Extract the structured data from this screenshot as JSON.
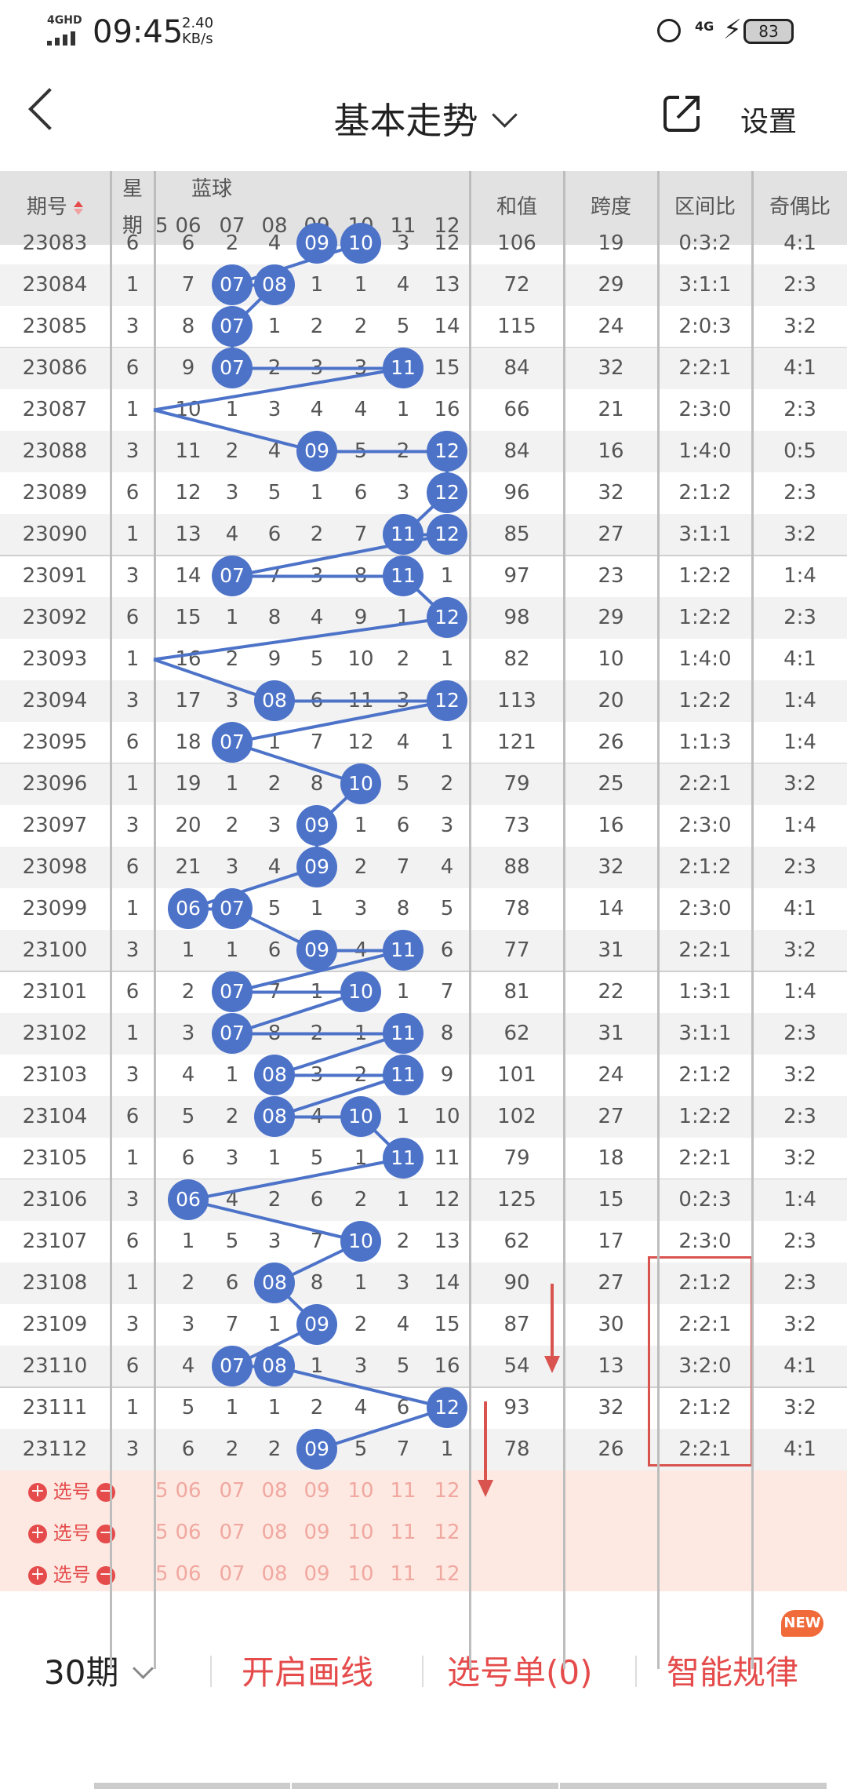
{
  "status": {
    "network": "4GHD",
    "time": "09:45",
    "speed": "2.40",
    "speed_unit": "KB/s",
    "net2": "4G",
    "battery": "83"
  },
  "header": {
    "title": "基本走势",
    "settings": "设置"
  },
  "columns": {
    "issue": "期号",
    "week_top": "星",
    "week_bottom": "期",
    "blue": "蓝球",
    "blue_nums": [
      "06",
      "07",
      "08",
      "09",
      "10",
      "11",
      "12"
    ],
    "blue_partial": "5",
    "sum": "和值",
    "span": "跨度",
    "ratio": "区间比",
    "parity": "奇偶比"
  },
  "rows": [
    {
      "issue": "23083",
      "week": "6",
      "cells": [
        "6",
        "2",
        "4",
        "09",
        "10",
        "3",
        "12"
      ],
      "ball": [
        3,
        4
      ],
      "sum": "106",
      "span": "19",
      "ratio": "0:3:2",
      "parity": "4:1"
    },
    {
      "issue": "23084",
      "week": "1",
      "cells": [
        "7",
        "07",
        "08",
        "1",
        "1",
        "4",
        "13"
      ],
      "ball": [
        1,
        2
      ],
      "sum": "72",
      "span": "29",
      "ratio": "3:1:1",
      "parity": "2:3"
    },
    {
      "issue": "23085",
      "week": "3",
      "cells": [
        "8",
        "07",
        "1",
        "2",
        "2",
        "5",
        "14"
      ],
      "ball": [
        1
      ],
      "sum": "115",
      "span": "24",
      "ratio": "2:0:3",
      "parity": "3:2"
    },
    {
      "issue": "23086",
      "week": "6",
      "cells": [
        "9",
        "07",
        "2",
        "3",
        "3",
        "11",
        "15"
      ],
      "ball": [
        1,
        5
      ],
      "sum": "84",
      "span": "32",
      "ratio": "2:2:1",
      "parity": "4:1"
    },
    {
      "issue": "23087",
      "week": "1",
      "cells": [
        "10",
        "1",
        "3",
        "4",
        "4",
        "1",
        "16"
      ],
      "ball": [],
      "sum": "66",
      "span": "21",
      "ratio": "2:3:0",
      "parity": "2:3"
    },
    {
      "issue": "23088",
      "week": "3",
      "cells": [
        "11",
        "2",
        "4",
        "09",
        "5",
        "2",
        "12"
      ],
      "ball": [
        3,
        6
      ],
      "sum": "84",
      "span": "16",
      "ratio": "1:4:0",
      "parity": "0:5"
    },
    {
      "issue": "23089",
      "week": "6",
      "cells": [
        "12",
        "3",
        "5",
        "1",
        "6",
        "3",
        "12"
      ],
      "ball": [
        6
      ],
      "sum": "96",
      "span": "32",
      "ratio": "2:1:2",
      "parity": "2:3"
    },
    {
      "issue": "23090",
      "week": "1",
      "cells": [
        "13",
        "4",
        "6",
        "2",
        "7",
        "11",
        "12"
      ],
      "ball": [
        5,
        6
      ],
      "sum": "85",
      "span": "27",
      "ratio": "3:1:1",
      "parity": "3:2"
    },
    {
      "issue": "23091",
      "week": "3",
      "cells": [
        "14",
        "07",
        "7",
        "3",
        "8",
        "11",
        "1"
      ],
      "ball": [
        1,
        5
      ],
      "sum": "97",
      "span": "23",
      "ratio": "1:2:2",
      "parity": "1:4"
    },
    {
      "issue": "23092",
      "week": "6",
      "cells": [
        "15",
        "1",
        "8",
        "4",
        "9",
        "1",
        "12"
      ],
      "ball": [
        6
      ],
      "sum": "98",
      "span": "29",
      "ratio": "1:2:2",
      "parity": "2:3"
    },
    {
      "issue": "23093",
      "week": "1",
      "cells": [
        "16",
        "2",
        "9",
        "5",
        "10",
        "2",
        "1"
      ],
      "ball": [],
      "sum": "82",
      "span": "10",
      "ratio": "1:4:0",
      "parity": "4:1"
    },
    {
      "issue": "23094",
      "week": "3",
      "cells": [
        "17",
        "3",
        "08",
        "6",
        "11",
        "3",
        "12"
      ],
      "ball": [
        2,
        6
      ],
      "sum": "113",
      "span": "20",
      "ratio": "1:2:2",
      "parity": "1:4"
    },
    {
      "issue": "23095",
      "week": "6",
      "cells": [
        "18",
        "07",
        "1",
        "7",
        "12",
        "4",
        "1"
      ],
      "ball": [
        1
      ],
      "sum": "121",
      "span": "26",
      "ratio": "1:1:3",
      "parity": "1:4"
    },
    {
      "issue": "23096",
      "week": "1",
      "cells": [
        "19",
        "1",
        "2",
        "8",
        "10",
        "5",
        "2"
      ],
      "ball": [
        4
      ],
      "sum": "79",
      "span": "25",
      "ratio": "2:2:1",
      "parity": "3:2"
    },
    {
      "issue": "23097",
      "week": "3",
      "cells": [
        "20",
        "2",
        "3",
        "09",
        "1",
        "6",
        "3"
      ],
      "ball": [
        3
      ],
      "sum": "73",
      "span": "16",
      "ratio": "2:3:0",
      "parity": "1:4"
    },
    {
      "issue": "23098",
      "week": "6",
      "cells": [
        "21",
        "3",
        "4",
        "09",
        "2",
        "7",
        "4"
      ],
      "ball": [
        3
      ],
      "sum": "88",
      "span": "32",
      "ratio": "2:1:2",
      "parity": "2:3"
    },
    {
      "issue": "23099",
      "week": "1",
      "cells": [
        "06",
        "07",
        "5",
        "1",
        "3",
        "8",
        "5"
      ],
      "ball": [
        0,
        1
      ],
      "sum": "78",
      "span": "14",
      "ratio": "2:3:0",
      "parity": "4:1"
    },
    {
      "issue": "23100",
      "week": "3",
      "cells": [
        "1",
        "1",
        "6",
        "09",
        "4",
        "11",
        "6"
      ],
      "ball": [
        3,
        5
      ],
      "sum": "77",
      "span": "31",
      "ratio": "2:2:1",
      "parity": "3:2"
    },
    {
      "issue": "23101",
      "week": "6",
      "cells": [
        "2",
        "07",
        "7",
        "1",
        "10",
        "1",
        "7"
      ],
      "ball": [
        1,
        4
      ],
      "sum": "81",
      "span": "22",
      "ratio": "1:3:1",
      "parity": "1:4"
    },
    {
      "issue": "23102",
      "week": "1",
      "cells": [
        "3",
        "07",
        "8",
        "2",
        "1",
        "11",
        "8"
      ],
      "ball": [
        1,
        5
      ],
      "sum": "62",
      "span": "31",
      "ratio": "3:1:1",
      "parity": "2:3"
    },
    {
      "issue": "23103",
      "week": "3",
      "cells": [
        "4",
        "1",
        "08",
        "3",
        "2",
        "11",
        "9"
      ],
      "ball": [
        2,
        5
      ],
      "sum": "101",
      "span": "24",
      "ratio": "2:1:2",
      "parity": "3:2"
    },
    {
      "issue": "23104",
      "week": "6",
      "cells": [
        "5",
        "2",
        "08",
        "4",
        "10",
        "1",
        "10"
      ],
      "ball": [
        2,
        4
      ],
      "sum": "102",
      "span": "27",
      "ratio": "1:2:2",
      "parity": "2:3"
    },
    {
      "issue": "23105",
      "week": "1",
      "cells": [
        "6",
        "3",
        "1",
        "5",
        "1",
        "11",
        "11"
      ],
      "ball": [
        5
      ],
      "sum": "79",
      "span": "18",
      "ratio": "2:2:1",
      "parity": "3:2"
    },
    {
      "issue": "23106",
      "week": "3",
      "cells": [
        "06",
        "4",
        "2",
        "6",
        "2",
        "1",
        "12"
      ],
      "ball": [
        0
      ],
      "sum": "125",
      "span": "15",
      "ratio": "0:2:3",
      "parity": "1:4"
    },
    {
      "issue": "23107",
      "week": "6",
      "cells": [
        "1",
        "5",
        "3",
        "7",
        "10",
        "2",
        "13"
      ],
      "ball": [
        4
      ],
      "sum": "62",
      "span": "17",
      "ratio": "2:3:0",
      "parity": "2:3"
    },
    {
      "issue": "23108",
      "week": "1",
      "cells": [
        "2",
        "6",
        "08",
        "8",
        "1",
        "3",
        "14"
      ],
      "ball": [
        2
      ],
      "sum": "90",
      "span": "27",
      "ratio": "2:1:2",
      "parity": "2:3"
    },
    {
      "issue": "23109",
      "week": "3",
      "cells": [
        "3",
        "7",
        "1",
        "09",
        "2",
        "4",
        "15"
      ],
      "ball": [
        3
      ],
      "sum": "87",
      "span": "30",
      "ratio": "2:2:1",
      "parity": "3:2"
    },
    {
      "issue": "23110",
      "week": "6",
      "cells": [
        "4",
        "07",
        "08",
        "1",
        "3",
        "5",
        "16"
      ],
      "ball": [
        1,
        2
      ],
      "sum": "54",
      "span": "13",
      "ratio": "3:2:0",
      "parity": "4:1"
    },
    {
      "issue": "23111",
      "week": "1",
      "cells": [
        "5",
        "1",
        "1",
        "2",
        "4",
        "6",
        "12"
      ],
      "ball": [
        6
      ],
      "sum": "93",
      "span": "32",
      "ratio": "2:1:2",
      "parity": "3:2"
    },
    {
      "issue": "23112",
      "week": "3",
      "cells": [
        "6",
        "2",
        "2",
        "09",
        "5",
        "7",
        "1"
      ],
      "ball": [
        3
      ],
      "sum": "78",
      "span": "26",
      "ratio": "2:2:1",
      "parity": "4:1"
    }
  ],
  "select": {
    "label": "选号",
    "rows": 3
  },
  "footer_header": {
    "dash": "-"
  },
  "footer": {
    "periods": "30期",
    "draw": "开启画线",
    "picklist": "选号单(0)",
    "smart": "智能规律",
    "new": "NEW"
  },
  "colors": {
    "ball": "#4d73c9",
    "accent": "#e54b4b",
    "header_bg": "#e2e2e2"
  }
}
